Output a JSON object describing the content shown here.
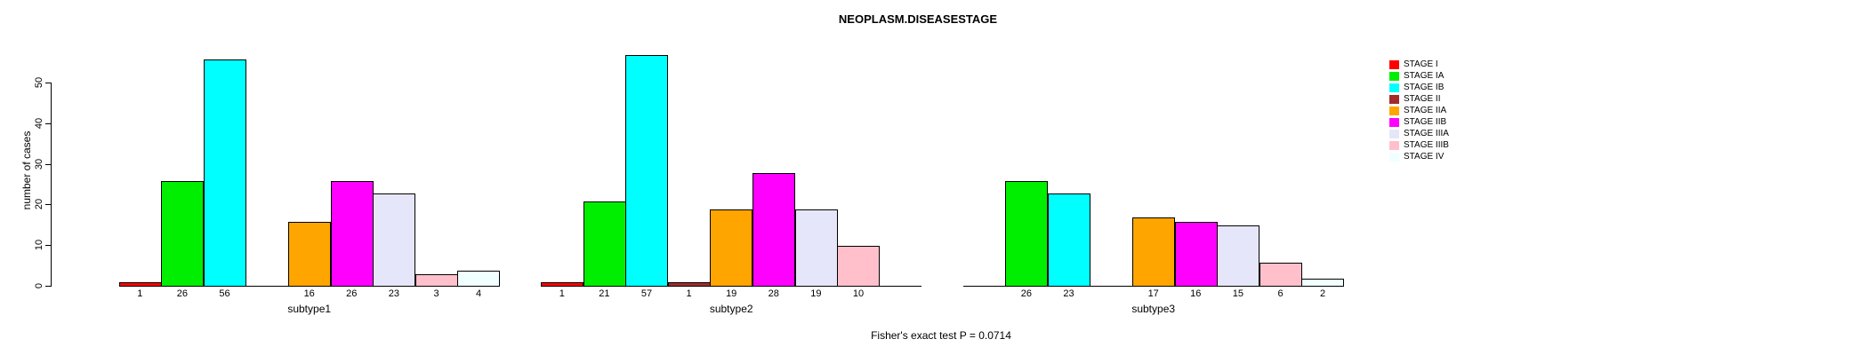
{
  "chart_data": {
    "type": "bar",
    "title": "NEOPLASM.DISEASESTAGE",
    "ylabel": "number of cases",
    "annotation": "Fisher's exact test P = 0.0714",
    "ylim": [
      0,
      57
    ],
    "yticks": [
      0,
      10,
      20,
      30,
      40,
      50
    ],
    "grid": false,
    "legend_position": "right",
    "categories": [
      "subtype1",
      "subtype2",
      "subtype3"
    ],
    "stages": [
      {
        "name": "STAGE I",
        "color": "#FF0000"
      },
      {
        "name": "STAGE IA",
        "color": "#00EE00"
      },
      {
        "name": "STAGE IB",
        "color": "#00FFFF"
      },
      {
        "name": "STAGE II",
        "color": "#A52A2A"
      },
      {
        "name": "STAGE IIA",
        "color": "#FFA500"
      },
      {
        "name": "STAGE IIB",
        "color": "#FF00FF"
      },
      {
        "name": "STAGE IIIA",
        "color": "#E6E6FA"
      },
      {
        "name": "STAGE IIIB",
        "color": "#FFC0CB"
      },
      {
        "name": "STAGE IV",
        "color": "#F0FFFF"
      }
    ],
    "series": [
      {
        "name": "STAGE I",
        "values": [
          1,
          1,
          0
        ]
      },
      {
        "name": "STAGE IA",
        "values": [
          26,
          21,
          26
        ]
      },
      {
        "name": "STAGE IB",
        "values": [
          56,
          57,
          23
        ]
      },
      {
        "name": "STAGE II",
        "values": [
          0,
          1,
          0
        ]
      },
      {
        "name": "STAGE IIA",
        "values": [
          16,
          19,
          17
        ]
      },
      {
        "name": "STAGE IIB",
        "values": [
          26,
          28,
          16
        ]
      },
      {
        "name": "STAGE IIIA",
        "values": [
          23,
          19,
          15
        ]
      },
      {
        "name": "STAGE IIIB",
        "values": [
          3,
          10,
          6
        ]
      },
      {
        "name": "STAGE IV",
        "values": [
          4,
          0,
          2
        ]
      }
    ],
    "value_labels_shown_for_zero": false
  }
}
